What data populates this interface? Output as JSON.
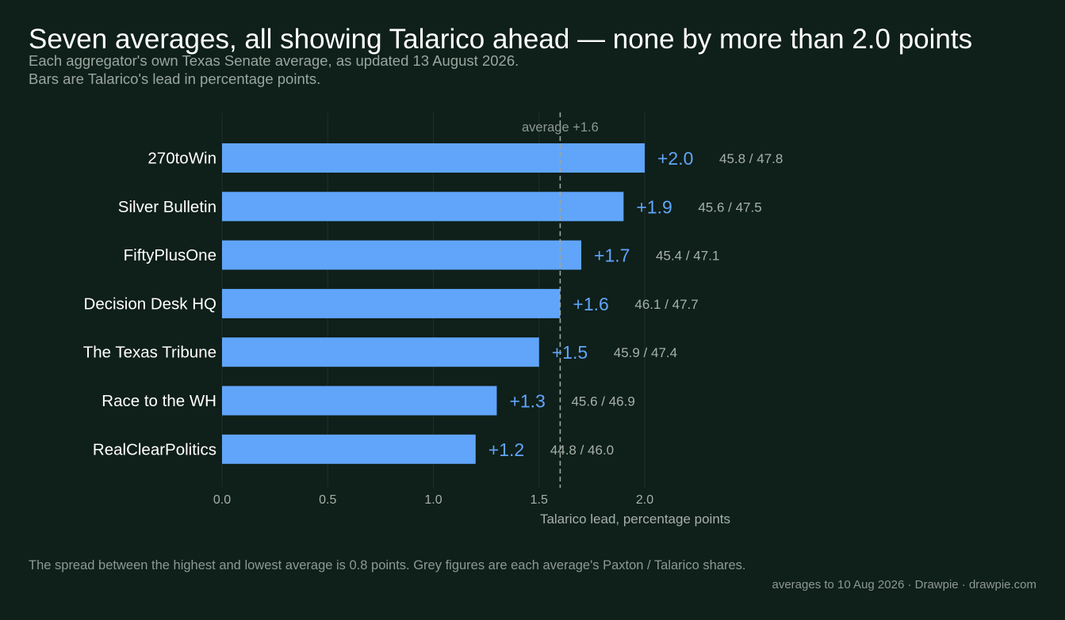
{
  "header": {
    "title": "Seven averages, all showing Talarico ahead — none by more than 2.0 points",
    "subtitle_line1": "Each aggregator's own Texas Senate average, as updated 13 August 2026.",
    "subtitle_line2": "Bars are Talarico's lead in percentage points."
  },
  "footer": {
    "note": "The spread between the highest and lowest average is 0.8 points. Grey figures are each average's Paxton / Talarico shares.",
    "credit": "averages to 10 Aug 2026  ·  Drawpie · drawpie.com"
  },
  "colors": {
    "background": "#0f1f19",
    "bar": "#60a5fa",
    "value_label": "#60a5fa",
    "share_label": "#a7b0ab",
    "category_label": "#ffffff",
    "grid": "#1e3029",
    "reference_line": "#9aa6a0"
  },
  "chart_data": {
    "type": "bar",
    "orientation": "horizontal",
    "categories": [
      "270toWin",
      "Silver Bulletin",
      "FiftyPlusOne",
      "Decision Desk HQ",
      "The Texas Tribune",
      "Race to the WH",
      "RealClearPolitics"
    ],
    "values": [
      2.0,
      1.9,
      1.7,
      1.6,
      1.5,
      1.3,
      1.2
    ],
    "value_labels": [
      "+2.0",
      "+1.9",
      "+1.7",
      "+1.6",
      "+1.5",
      "+1.3",
      "+1.2"
    ],
    "share_labels": [
      "45.8 / 47.8",
      "45.6 / 47.5",
      "45.4 / 47.1",
      "46.1 / 47.7",
      "45.9 / 47.4",
      "45.6 / 46.9",
      "44.8 / 46.0"
    ],
    "xlabel": "Talarico lead, percentage points",
    "xlim": [
      0,
      2.0
    ],
    "xticks": [
      0.0,
      0.5,
      1.0,
      1.5,
      2.0
    ],
    "xtick_labels": [
      "0.0",
      "0.5",
      "1.0",
      "1.5",
      "2.0"
    ],
    "grid": "vertical",
    "reference_line": {
      "value": 1.6,
      "label": "average +1.6",
      "style": "dashed"
    }
  }
}
